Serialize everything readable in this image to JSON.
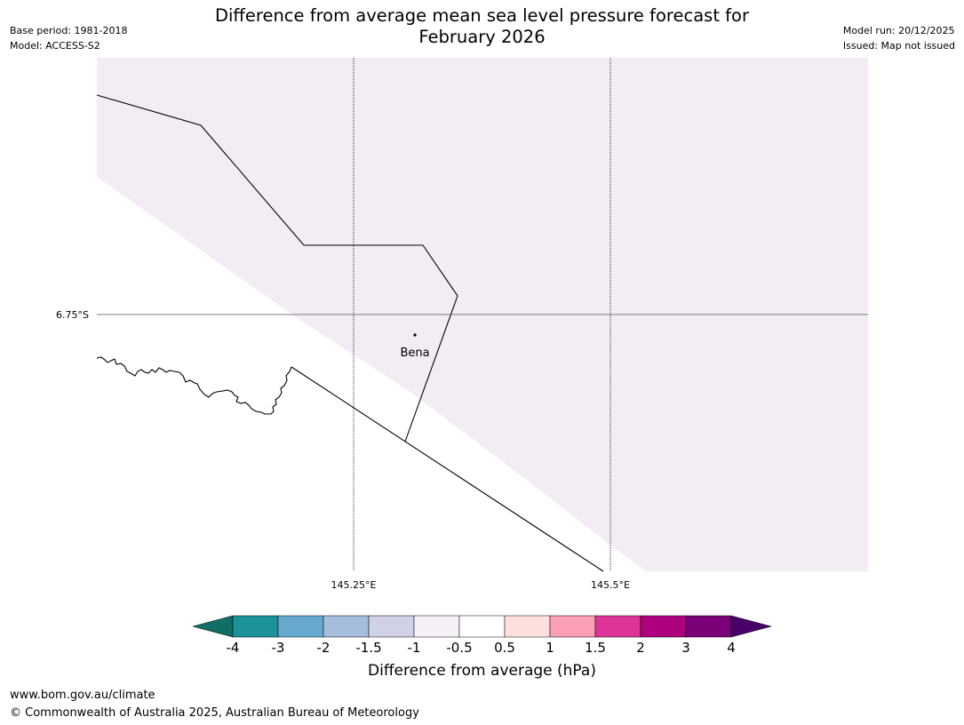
{
  "header": {
    "base_period": "Base period: 1981-2018",
    "model": "Model: ACCESS-S2",
    "title_line1": "Difference from average mean sea level pressure forecast for",
    "title_line2": "February 2026",
    "model_run": "Model run: 20/12/2025",
    "issued": "Issued: Map not issued"
  },
  "map": {
    "fill_color": "#f4ecf5",
    "place_name": "Bena",
    "lat_label": "6.75°S",
    "lon_labels": [
      "145.25°E",
      "145.5°E"
    ]
  },
  "colorbar": {
    "title": "Difference from average (hPa)",
    "ticks": [
      "-4",
      "-3",
      "-2",
      "-1.5",
      "-1",
      "-0.5",
      "0.5",
      "1",
      "1.5",
      "2",
      "3",
      "4"
    ],
    "colors": [
      "#0f6e66",
      "#1c9299",
      "#67a9cf",
      "#a6bddb",
      "#d0d1e6",
      "#f6eff7",
      "#ffffff",
      "#fde0dd",
      "#fa9fb5",
      "#dd3497",
      "#ae017e",
      "#7a0177",
      "#49006a"
    ]
  },
  "footer": {
    "url": "www.bom.gov.au/climate",
    "copyright": "© Commonwealth of Australia 2025, Australian Bureau of Meteorology"
  }
}
